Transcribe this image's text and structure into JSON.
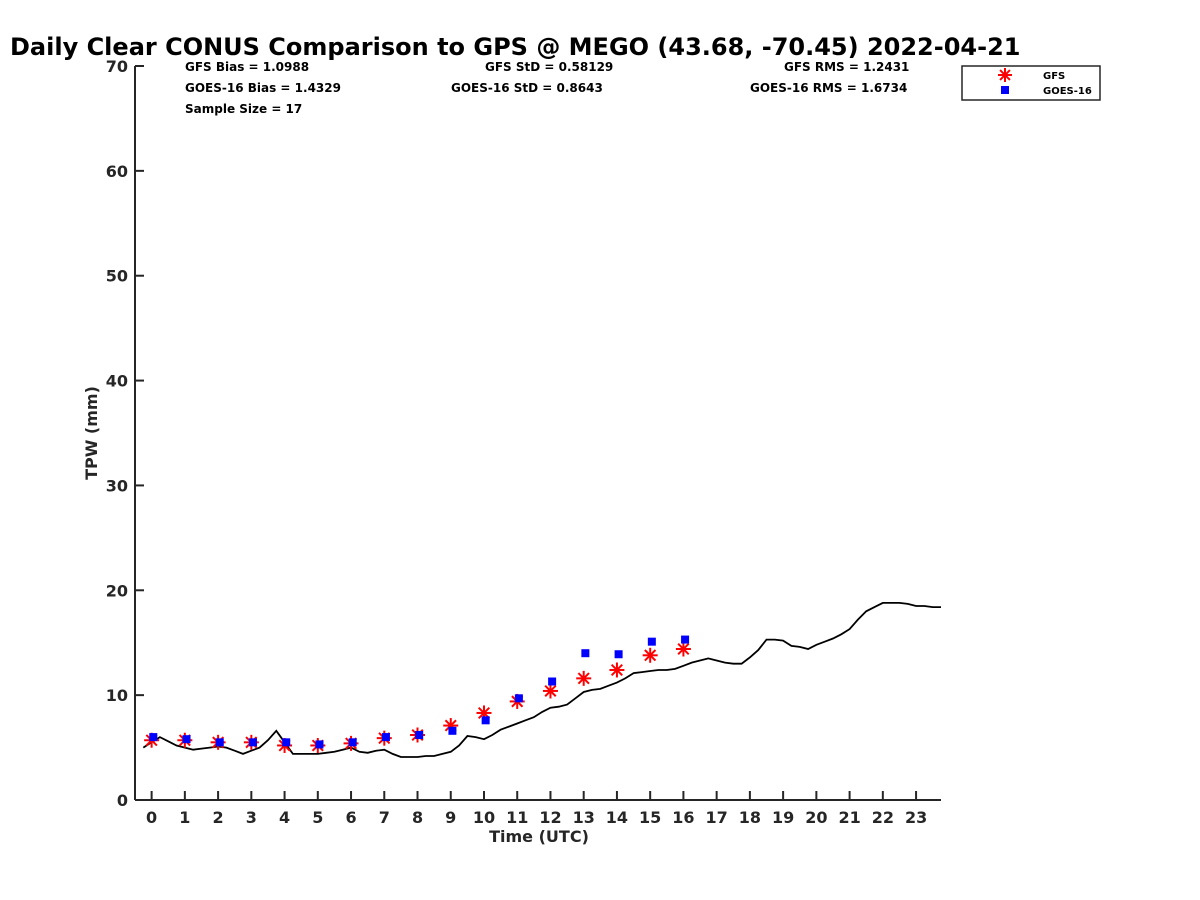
{
  "chart_data": {
    "type": "scatter",
    "title": "Daily Clear CONUS Comparison to GPS @ MEGO (43.68, -70.45) 2022-04-21",
    "xlabel": "Time (UTC)",
    "ylabel": "TPW (mm)",
    "xlim": [
      -0.5,
      23.75
    ],
    "ylim": [
      0,
      70
    ],
    "x_ticks": [
      "0",
      "1",
      "2",
      "3",
      "4",
      "5",
      "6",
      "7",
      "8",
      "9",
      "10",
      "11",
      "12",
      "13",
      "14",
      "15",
      "16",
      "17",
      "18",
      "19",
      "20",
      "21",
      "22",
      "23"
    ],
    "y_ticks": [
      "0",
      "10",
      "20",
      "30",
      "40",
      "50",
      "60",
      "70"
    ],
    "grid": false,
    "legend_position": "top-right",
    "stats": [
      "GFS Bias = 1.0988",
      "GFS StD = 0.58129",
      "GFS RMS = 1.2431",
      "GOES-16 Bias = 1.4329",
      "GOES-16 StD = 0.8643",
      "GOES-16 RMS = 1.6734",
      "Sample Size = 17"
    ],
    "gps_line": {
      "color": "#000000",
      "x": [
        -0.25,
        0,
        0.25,
        0.5,
        0.75,
        1,
        1.25,
        1.5,
        1.75,
        2,
        2.25,
        2.5,
        2.75,
        3,
        3.25,
        3.5,
        3.75,
        4,
        4.25,
        4.5,
        4.75,
        5,
        5.25,
        5.5,
        5.75,
        6,
        6.25,
        6.5,
        6.75,
        7,
        7.25,
        7.5,
        7.75,
        8,
        8.25,
        8.5,
        8.75,
        9,
        9.25,
        9.5,
        9.75,
        10,
        10.25,
        10.5,
        10.75,
        11,
        11.25,
        11.5,
        11.75,
        12,
        12.25,
        12.5,
        12.75,
        13,
        13.25,
        13.5,
        13.75,
        14,
        14.25,
        14.5,
        14.75,
        15,
        15.25,
        15.5,
        15.75,
        16,
        16.25,
        16.5,
        16.75,
        17,
        17.25,
        17.5,
        17.75,
        18,
        18.25,
        18.5,
        18.75,
        19,
        19.25,
        19.5,
        19.75,
        20,
        20.25,
        20.5,
        20.75,
        21,
        21.25,
        21.5,
        21.75,
        22,
        22.25,
        22.5,
        22.75,
        23,
        23.25,
        23.5,
        23.75
      ],
      "y": [
        5.0,
        5.5,
        6.0,
        5.6,
        5.2,
        5.0,
        4.8,
        4.9,
        5.0,
        5.1,
        5.0,
        4.7,
        4.4,
        4.7,
        5.0,
        5.7,
        6.6,
        5.5,
        4.4,
        4.4,
        4.4,
        4.4,
        4.5,
        4.6,
        4.8,
        5.0,
        4.6,
        4.5,
        4.7,
        4.8,
        4.4,
        4.1,
        4.1,
        4.1,
        4.2,
        4.2,
        4.4,
        4.6,
        5.2,
        6.1,
        6.0,
        5.8,
        6.2,
        6.7,
        7.0,
        7.3,
        7.6,
        7.9,
        8.4,
        8.8,
        8.9,
        9.1,
        9.7,
        10.3,
        10.5,
        10.6,
        10.9,
        11.2,
        11.6,
        12.1,
        12.2,
        12.3,
        12.4,
        12.4,
        12.5,
        12.8,
        13.1,
        13.3,
        13.5,
        13.3,
        13.1,
        13.0,
        13.0,
        13.6,
        14.3,
        15.3,
        15.3,
        15.2,
        14.7,
        14.6,
        14.4,
        14.8,
        15.1,
        15.4,
        15.8,
        16.3,
        17.2,
        18.0,
        18.4,
        18.8,
        18.8,
        18.8,
        18.7,
        18.5,
        18.5,
        18.4,
        18.4
      ]
    },
    "series": [
      {
        "name": "GFS",
        "marker": "asterisk",
        "color": "#ff0000",
        "x": [
          0,
          1,
          2,
          3,
          4,
          5,
          6,
          7,
          8,
          9,
          10,
          11,
          12,
          13,
          14,
          15,
          16
        ],
        "y": [
          5.7,
          5.7,
          5.5,
          5.5,
          5.2,
          5.2,
          5.4,
          5.9,
          6.2,
          7.1,
          8.3,
          9.4,
          10.4,
          11.6,
          12.4,
          13.8,
          14.4
        ]
      },
      {
        "name": "GOES-16",
        "marker": "square",
        "color": "#0000ff",
        "x": [
          0.05,
          1.05,
          2.05,
          3.05,
          4.05,
          5.05,
          6.05,
          7.05,
          8.05,
          9.05,
          10.05,
          11.05,
          12.05,
          13.05,
          14.05,
          15.05,
          16.05
        ],
        "y": [
          6.0,
          5.8,
          5.5,
          5.5,
          5.5,
          5.3,
          5.5,
          6.0,
          6.2,
          6.6,
          7.6,
          9.7,
          11.3,
          14.0,
          13.9,
          15.1,
          15.3
        ]
      }
    ]
  }
}
